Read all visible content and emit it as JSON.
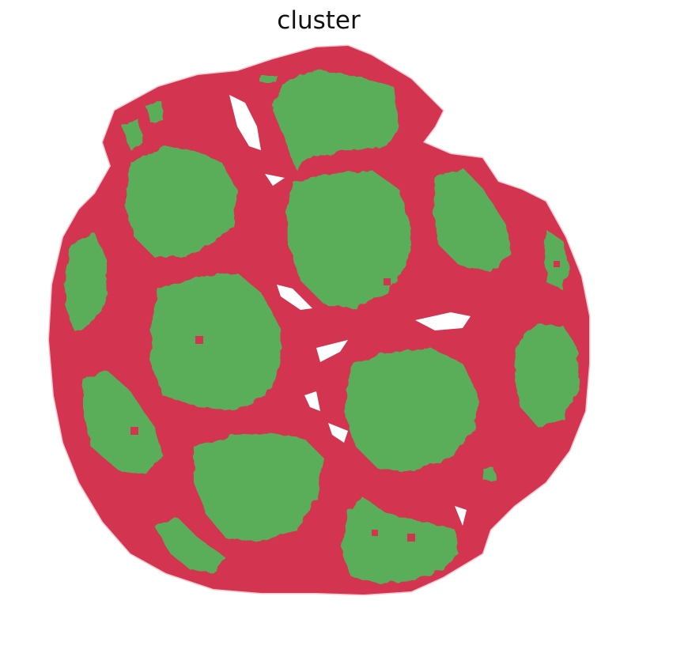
{
  "title": "cluster",
  "colors": {
    "background_tissue": "#d3344f",
    "cluster_spots": "#5aae5a",
    "page": "#ffffff"
  }
}
